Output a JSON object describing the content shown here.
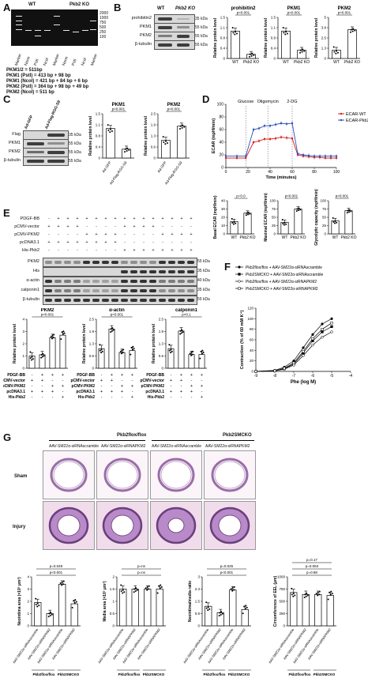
{
  "panels": {
    "A": {
      "label": "A",
      "gel_headers": [
        "WT",
        "Pkb2 KO"
      ],
      "lane_labels": [
        "Marker",
        "None",
        "PstI",
        "NcoI",
        "Marker",
        "None",
        "PstI",
        "NcoI",
        "Marker"
      ],
      "ladder": [
        "2000",
        "1000",
        "750",
        "500",
        "250",
        "100"
      ],
      "notes": [
        "PKM1/2 = 511bp",
        "PKM1 (PstI) = 413 bp + 98 bp",
        "PKM1 (NcoI) = 421 bp + 84 bp + 6 bp",
        "PKM2 (PstI) = 364 bp + 98 bp + 49 bp",
        "PKM2 (NcoI) = 511 bp"
      ]
    },
    "B": {
      "label": "B",
      "blot_header": [
        "WT",
        "Pkb2 KO"
      ],
      "rows": [
        "prohibitin2",
        "PKM1",
        "PKM2",
        "β-tubulin"
      ],
      "kda": [
        "35 kDa",
        "55 kDa",
        "55 kDa",
        "55 kDa"
      ],
      "ylabel": "Relative protein level",
      "charts": [
        {
          "title": "prohibitin2",
          "pval": "p<0.001",
          "categories": [
            "WT",
            "Pkb2 KO"
          ]
        },
        {
          "title": "PKM1",
          "pval": "p<0.001",
          "categories": [
            "WT",
            "Pkb2 KO"
          ]
        },
        {
          "title": "PKM2",
          "pval": "p<0.001",
          "categories": [
            "WT",
            "Pkb2 KO"
          ]
        }
      ]
    },
    "C": {
      "label": "C",
      "blot_header": [
        "Ad-GFP",
        "Ad-Flag-RGG-S9"
      ],
      "rows": [
        "Flag",
        "PKM1",
        "PKM2",
        "β-tubulin"
      ],
      "kda": [
        "35 kDa",
        "55 kDa",
        "55 kDa",
        "55 kDa"
      ],
      "ylabel": "Relative protein level",
      "charts": [
        {
          "title": "PKM1",
          "pval": "p<0.001",
          "categories": [
            "Ad-GFP",
            "Ad-Flag-RGG-S9"
          ]
        },
        {
          "title": "PKM2",
          "pval": "p<0.001",
          "categories": [
            "Ad-GFP",
            "Ad-Flag-RGG-S9"
          ]
        }
      ]
    },
    "D": {
      "label": "D",
      "markers": [
        "Glucose",
        "Oligomycin",
        "2-DG"
      ],
      "legend": [
        "ECAR-WT",
        "ECAR-Pkb2 KO"
      ],
      "xlabel": "Time (minutes)",
      "ylabel": "ECAR (mpH/min)",
      "xticks": [
        "0",
        "20",
        "40",
        "60",
        "80",
        "100"
      ],
      "yticks": [
        "0",
        "20",
        "40",
        "60",
        "80",
        "100"
      ],
      "bar_charts": [
        {
          "ylabel": "Basal ECAR (mpH/min)",
          "pval": "p=0.0",
          "categories": [
            "WT",
            "Pkb2 KO"
          ]
        },
        {
          "ylabel": "Maximal ECAR (mpH/min)",
          "pval": "p<0.001",
          "categories": [
            "WT",
            "Pkb2 KO"
          ]
        },
        {
          "ylabel": "Glycolytic capacity (mpH/min)",
          "pval": "p<0.001",
          "categories": [
            "WT",
            "Pkb2 KO"
          ]
        }
      ]
    },
    "E": {
      "label": "E",
      "conditions": [
        "PDGF-BB",
        "pCMV-vector",
        "pCMV-PKM2",
        "pcDNA3.1",
        "His-Pkb2"
      ],
      "rows": [
        "PKM2",
        "His",
        "α-actin",
        "calponin1",
        "β-tubulin"
      ],
      "kda": [
        "55 kDa",
        "35 kDa",
        "40 kDa",
        "35 kDa",
        "55 kDa"
      ],
      "charts": [
        {
          "title": "PKM2",
          "pval": "p<0.001"
        },
        {
          "title": "α-actin",
          "pval": "p<0.001"
        },
        {
          "title": "calponin1",
          "pval": "p<0.1"
        }
      ],
      "chart_conditions": [
        "PDGF-BB",
        "pCMV-vector",
        "pCMV-PKM2",
        "pcDNA3.1",
        "His-Pkb2"
      ],
      "ylabel": "Relative protein level"
    },
    "F": {
      "label": "F",
      "legend": [
        "Pkb2flox/flox + AAV-SM22α-siRNAscramble",
        "Pkb2SMCKO + AAV-SM22α-siRNAscramble",
        "Pkb2flox/flox + AAV-SM22α-siRNAPKM2",
        "Pkb2SMCKO + AAV-SM22α-siRNAPKM2"
      ],
      "xlabel": "Phe (log M)",
      "ylabel": "Contraction (% of 60 mM K⁺)",
      "xticks": [
        "-9",
        "-8",
        "-7",
        "-6",
        "-5",
        "-4"
      ]
    },
    "G": {
      "label": "G",
      "group_headers": [
        "Pkb2flox/flox",
        "Pkb2SMCKO"
      ],
      "column_headers": [
        "AAV-SM22α-siRNAscramble",
        "AAV-SM22α-siRNAPKM2",
        "AAV-SM22α-siRNAscramble",
        "AAV-SM22α-siRNAPKM2"
      ],
      "row_labels": [
        "Sham",
        "Injury"
      ],
      "bar_charts": [
        {
          "ylabel": "Neointima area (×10³ μm²)",
          "pvals": [
            "p<0.001",
            "p=0.049"
          ]
        },
        {
          "ylabel": "Media area (×10³ μm²)",
          "pvals": [
            "p=ns",
            "p=ns"
          ]
        },
        {
          "ylabel": "Neointima/media ratio",
          "pvals": [
            "p<0.001",
            "p=0.025"
          ]
        },
        {
          "ylabel": "Circumference of EEL (μm)",
          "pvals": [
            "p=0.88",
            "p=0.063",
            "p=0.17"
          ]
        }
      ],
      "xcats": [
        "AAV-SM22α-siRNAscramble",
        "AAV-SM22α-siRNAPKM2",
        "AAV-SM22α-siRNAscramble",
        "AAV-SM22α-siRNAPKM2"
      ],
      "groups": [
        "Pkb2flox/flox",
        "Pkb2SMCKO"
      ]
    }
  },
  "chart_data": [
    {
      "type": "bar",
      "title": "prohibitin2",
      "categories": [
        "WT",
        "Pkb2 KO"
      ],
      "values": [
        1.0,
        0.15
      ],
      "ylim": [
        0,
        1.5
      ]
    },
    {
      "type": "bar",
      "title": "PKM1",
      "categories": [
        "WT",
        "Pkb2 KO"
      ],
      "values": [
        1.0,
        0.3
      ],
      "ylim": [
        0,
        1.5
      ]
    },
    {
      "type": "bar",
      "title": "PKM2",
      "categories": [
        "WT",
        "Pkb2 KO"
      ],
      "values": [
        1.0,
        3.5
      ],
      "ylim": [
        0,
        5
      ]
    },
    {
      "type": "bar",
      "title": "PKM1",
      "categories": [
        "Ad-GFP",
        "Ad-Flag-RGG-S9"
      ],
      "values": [
        1.0,
        0.3
      ],
      "ylim": [
        0,
        1.5
      ]
    },
    {
      "type": "bar",
      "title": "PKM2",
      "categories": [
        "Ad-GFP",
        "Ad-Flag-RGG-S9"
      ],
      "values": [
        1.0,
        1.8
      ],
      "ylim": [
        0,
        2.5
      ]
    },
    {
      "type": "line",
      "xlabel": "Time (minutes)",
      "ylabel": "ECAR (mpH/min)",
      "series": [
        {
          "name": "ECAR-WT",
          "x": [
            0,
            10,
            18,
            25,
            30,
            35,
            40,
            45,
            50,
            55,
            60,
            65,
            70,
            75,
            80,
            85,
            90,
            95,
            100
          ],
          "y": [
            15,
            15,
            15,
            40,
            42,
            45,
            45,
            46,
            48,
            47,
            46,
            20,
            18,
            17,
            16,
            16,
            15,
            15,
            15
          ]
        },
        {
          "name": "ECAR-Pkb2 KO",
          "x": [
            0,
            10,
            18,
            25,
            30,
            35,
            40,
            45,
            50,
            55,
            60,
            65,
            70,
            75,
            80,
            85,
            90,
            95,
            100
          ],
          "y": [
            18,
            18,
            18,
            60,
            62,
            66,
            66,
            68,
            70,
            69,
            70,
            22,
            20,
            19,
            18,
            18,
            18,
            18,
            18
          ]
        }
      ],
      "xlim": [
        0,
        100
      ],
      "ylim": [
        0,
        100
      ]
    },
    {
      "type": "bar",
      "title": "Basal ECAR",
      "categories": [
        "WT",
        "Pkb2 KO"
      ],
      "values": [
        15,
        25
      ],
      "ylim": [
        0,
        40
      ]
    },
    {
      "type": "bar",
      "title": "Maximal ECAR",
      "categories": [
        "WT",
        "Pkb2 KO"
      ],
      "values": [
        35,
        75
      ],
      "ylim": [
        0,
        100
      ]
    },
    {
      "type": "bar",
      "title": "Glycolytic capacity",
      "categories": [
        "WT",
        "Pkb2 KO"
      ],
      "values": [
        40,
        70
      ],
      "ylim": [
        0,
        100
      ]
    },
    {
      "type": "bar",
      "title": "PKM2",
      "values": [
        1.0,
        1.1,
        2.5,
        2.7
      ],
      "ylim": [
        0,
        4
      ]
    },
    {
      "type": "bar",
      "title": "α-actin",
      "values": [
        1.0,
        2.0,
        0.8,
        0.9
      ],
      "ylim": [
        0,
        2.5
      ]
    },
    {
      "type": "bar",
      "title": "calponin1",
      "values": [
        1.0,
        1.9,
        0.7,
        0.7
      ],
      "ylim": [
        0,
        2.5
      ]
    },
    {
      "type": "line",
      "xlabel": "Phe (log M)",
      "ylabel": "Contraction (% of 60 mM K⁺)",
      "series": [
        {
          "name": "Pkb2flox/flox + AAV-SM22α-siRNAscramble",
          "x": [
            -9,
            -8,
            -7.5,
            -7,
            -6.5,
            -6,
            -5.5,
            -5
          ],
          "y": [
            0,
            2,
            8,
            20,
            45,
            70,
            90,
            100
          ]
        },
        {
          "name": "Pkb2SMCKO + AAV-SM22α-siRNAscramble",
          "x": [
            -9,
            -8,
            -7.5,
            -7,
            -6.5,
            -6,
            -5.5,
            -5
          ],
          "y": [
            0,
            1,
            5,
            14,
            35,
            58,
            75,
            85
          ]
        },
        {
          "name": "Pkb2flox/flox + AAV-SM22α-siRNAPKM2",
          "x": [
            -9,
            -8,
            -7.5,
            -7,
            -6.5,
            -6,
            -5.5,
            -5
          ],
          "y": [
            0,
            1,
            4,
            12,
            30,
            50,
            65,
            75
          ]
        },
        {
          "name": "Pkb2SMCKO + AAV-SM22α-siRNAPKM2",
          "x": [
            -9,
            -8,
            -7.5,
            -7,
            -6.5,
            -6,
            -5.5,
            -5
          ],
          "y": [
            0,
            1,
            6,
            16,
            38,
            62,
            80,
            92
          ]
        }
      ],
      "xlim": [
        -9,
        -4
      ],
      "ylim": [
        0,
        120
      ]
    },
    {
      "type": "bar",
      "title": "Neointima area",
      "values": [
        1.9,
        1.0,
        3.4,
        1.8
      ],
      "ylim": [
        0,
        4
      ]
    },
    {
      "type": "bar",
      "title": "Media area",
      "values": [
        1.5,
        1.5,
        1.5,
        1.5
      ],
      "ylim": [
        0,
        2
      ]
    },
    {
      "type": "bar",
      "title": "Neointima/media ratio",
      "values": [
        1.2,
        0.8,
        2.2,
        1.0
      ],
      "ylim": [
        0,
        3
      ]
    },
    {
      "type": "bar",
      "title": "Circumference of EEL",
      "values": [
        680,
        640,
        640,
        620
      ],
      "ylim": [
        0,
        1000
      ]
    }
  ]
}
